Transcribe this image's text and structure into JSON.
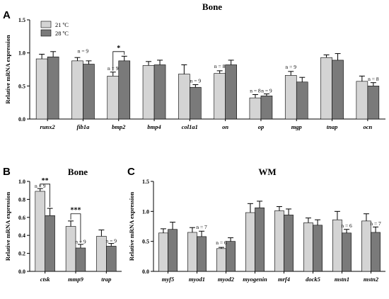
{
  "chart_data": [
    {
      "type": "bar",
      "panel": "A",
      "title": "Bone",
      "ylabel": "Relative mRNA expression",
      "ylim": [
        0,
        1.5
      ],
      "yticks": [
        "0.0",
        "0.5",
        "1.0",
        "1.5"
      ],
      "categories": [
        "runx2",
        "fib1a",
        "bmp2",
        "bmp4",
        "col1a1",
        "on",
        "op",
        "mgp",
        "tnap",
        "ocn"
      ],
      "legend": [
        "21 ºC",
        "28 ºC"
      ],
      "series": [
        {
          "name": "21 ºC",
          "color": "#d4d4d4",
          "values": [
            0.91,
            0.88,
            0.65,
            0.81,
            0.68,
            0.69,
            0.32,
            0.66,
            0.93,
            0.57
          ],
          "errors": [
            0.07,
            0.05,
            0.06,
            0.06,
            0.14,
            0.04,
            0.05,
            0.06,
            0.04,
            0.08
          ]
        },
        {
          "name": "28 ºC",
          "color": "#7a7a7a",
          "values": [
            0.94,
            0.83,
            0.88,
            0.82,
            0.48,
            0.82,
            0.35,
            0.56,
            0.89,
            0.5
          ],
          "errors": [
            0.08,
            0.05,
            0.07,
            0.07,
            0.04,
            0.07,
            0.03,
            0.07,
            0.1,
            0.05
          ]
        }
      ],
      "annotations": [
        {
          "cat": 1,
          "side": "both",
          "y": 1.0,
          "text": "n = 9"
        },
        {
          "cat": 2,
          "side": 0,
          "y": 0.74,
          "text": "n = 9"
        },
        {
          "cat": 4,
          "side": 1,
          "y": 0.55,
          "text": "n = 9"
        },
        {
          "cat": 5,
          "side": 0,
          "y": 0.77,
          "text": "n = 8"
        },
        {
          "cat": 6,
          "side": 0,
          "y": 0.4,
          "text": "n = 8"
        },
        {
          "cat": 6,
          "side": 1,
          "y": 0.4,
          "text": "n = 9"
        },
        {
          "cat": 7,
          "side": 0,
          "y": 0.76,
          "text": "n = 9"
        },
        {
          "cat": 9,
          "side": 1,
          "y": 0.58,
          "text": "n = 8"
        }
      ],
      "significance": [
        {
          "cat_a": 2,
          "side_a": 0,
          "cat_b": 2,
          "side_b": 1,
          "y": 1.02,
          "text": "*"
        }
      ]
    },
    {
      "type": "bar",
      "panel": "B",
      "title": "Bone",
      "ylabel": "Relative mRNA expression",
      "ylim": [
        0,
        1.0
      ],
      "yticks": [
        "0.0",
        "0.2",
        "0.4",
        "0.6",
        "0.8",
        "1.0"
      ],
      "categories": [
        "ctsk",
        "mmp9",
        "trap"
      ],
      "series": [
        {
          "name": "21 ºC",
          "color": "#d4d4d4",
          "values": [
            0.89,
            0.5,
            0.39
          ],
          "errors": [
            0.03,
            0.06,
            0.07
          ]
        },
        {
          "name": "28 ºC",
          "color": "#7a7a7a",
          "values": [
            0.62,
            0.26,
            0.28
          ],
          "errors": [
            0.08,
            0.04,
            0.03
          ]
        }
      ],
      "annotations": [
        {
          "cat": 0,
          "side": 0,
          "y": 0.93,
          "text": "n = 9"
        },
        {
          "cat": 1,
          "side": 1,
          "y": 0.31,
          "text": "n = 9"
        },
        {
          "cat": 2,
          "side": 1,
          "y": 0.32,
          "text": "n = 9"
        }
      ],
      "significance": [
        {
          "cat_a": 0,
          "side_a": 0,
          "cat_b": 0,
          "side_b": 1,
          "y": 0.97,
          "text": "**"
        },
        {
          "cat_a": 1,
          "side_a": 0,
          "cat_b": 1,
          "side_b": 1,
          "y": 0.64,
          "text": "***"
        }
      ]
    },
    {
      "type": "bar",
      "panel": "C",
      "title": "WM",
      "ylabel": "Relative mRNA expression",
      "ylim": [
        0,
        1.5
      ],
      "yticks": [
        "0.0",
        "0.5",
        "1.0",
        "1.5"
      ],
      "categories": [
        "myf5",
        "myod1",
        "myod2",
        "myogenin",
        "mrf4",
        "dock5",
        "mstn1",
        "mstn2"
      ],
      "series": [
        {
          "name": "21 ºC",
          "color": "#d4d4d4",
          "values": [
            0.64,
            0.65,
            0.38,
            0.98,
            1.01,
            0.81,
            0.86,
            0.84
          ],
          "errors": [
            0.07,
            0.08,
            0.02,
            0.15,
            0.07,
            0.08,
            0.14,
            0.12
          ]
        },
        {
          "name": "28 ºC",
          "color": "#7a7a7a",
          "values": [
            0.7,
            0.58,
            0.5,
            1.06,
            0.94,
            0.77,
            0.64,
            0.65
          ],
          "errors": [
            0.12,
            0.09,
            0.06,
            0.11,
            0.1,
            0.09,
            0.06,
            0.09
          ]
        }
      ],
      "annotations": [
        {
          "cat": 1,
          "side": 1,
          "y": 0.71,
          "text": "n = 7"
        },
        {
          "cat": 2,
          "side": 0,
          "y": 0.45,
          "text": "n = 6"
        },
        {
          "cat": 6,
          "side": 1,
          "y": 0.73,
          "text": "n = 6"
        },
        {
          "cat": 7,
          "side": 1,
          "y": 0.77,
          "text": "n = 7"
        }
      ],
      "significance": []
    }
  ]
}
